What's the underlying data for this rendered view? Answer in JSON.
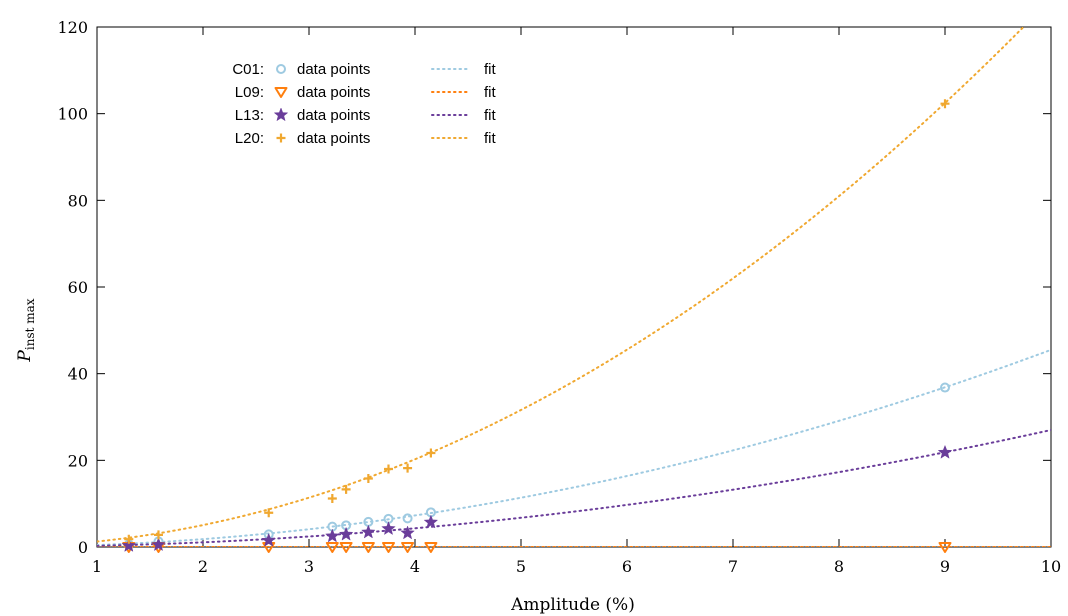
{
  "chart_data": {
    "type": "scatter",
    "title": "",
    "xlabel": "Amplitude (%)",
    "ylabel": {
      "main": "P",
      "subscript": "inst max"
    },
    "xlim": [
      1,
      10
    ],
    "ylim": [
      0,
      120
    ],
    "xticks": [
      1,
      2,
      3,
      4,
      5,
      6,
      7,
      8,
      9,
      10
    ],
    "yticks": [
      0,
      20,
      40,
      60,
      80,
      100,
      120
    ],
    "grid": false,
    "legend_placement": "top-left",
    "series": [
      {
        "name": "C01",
        "points_label": "data points",
        "fit_label": "fit",
        "marker": "circle",
        "color": "#9ecae1",
        "x": [
          1.3,
          1.58,
          2.62,
          3.22,
          3.35,
          3.56,
          3.75,
          3.93,
          4.15,
          9.0
        ],
        "y": [
          0.6,
          1.3,
          2.9,
          4.7,
          5.0,
          5.8,
          6.5,
          6.6,
          8.0,
          36.8
        ],
        "fit": {
          "form": "a*x^2",
          "a": 0.455
        }
      },
      {
        "name": "L09",
        "points_label": "data points",
        "fit_label": "fit",
        "marker": "triangle-down",
        "color": "#ff7f0e",
        "x": [
          1.3,
          1.58,
          2.62,
          3.22,
          3.35,
          3.56,
          3.75,
          3.93,
          4.15,
          9.0
        ],
        "y": [
          0,
          0,
          0,
          0,
          0,
          0,
          0,
          0,
          0,
          0
        ],
        "fit": {
          "form": "a*x^2",
          "a": 0.0
        }
      },
      {
        "name": "L13",
        "points_label": "data points",
        "fit_label": "fit",
        "marker": "star",
        "color": "#6a3d9a",
        "x": [
          1.3,
          1.58,
          2.62,
          3.22,
          3.35,
          3.56,
          3.75,
          3.93,
          4.15,
          9.0
        ],
        "y": [
          0.3,
          0.5,
          1.5,
          2.5,
          2.9,
          3.4,
          4.2,
          3.2,
          5.7,
          21.8
        ],
        "fit": {
          "form": "a*x^2",
          "a": 0.27
        }
      },
      {
        "name": "L20",
        "points_label": "data points",
        "fit_label": "fit",
        "marker": "plus",
        "color": "#f0a830",
        "x": [
          1.3,
          1.58,
          2.62,
          3.22,
          3.35,
          3.56,
          3.75,
          3.93,
          4.15,
          9.0
        ],
        "y": [
          1.8,
          2.8,
          7.9,
          11.2,
          13.3,
          15.8,
          18.0,
          18.2,
          21.7,
          102.3
        ],
        "fit": {
          "form": "a*x^2",
          "a": 1.265
        }
      }
    ]
  }
}
